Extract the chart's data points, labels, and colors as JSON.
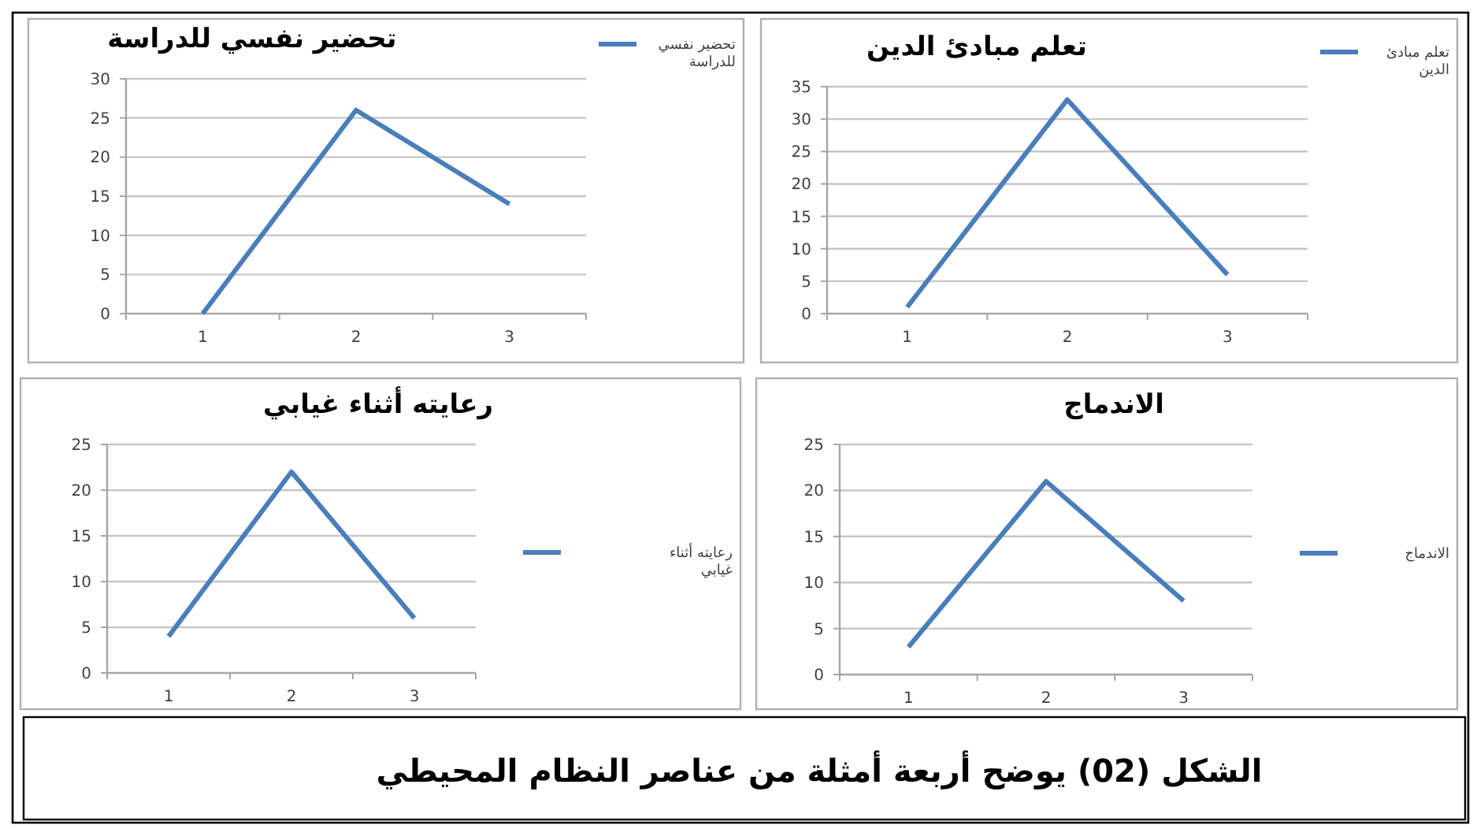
{
  "chart_data": [
    {
      "type": "line",
      "title": "تحضير نفسي للدراسة",
      "categories": [
        "1",
        "2",
        "3"
      ],
      "series": [
        {
          "name": "تحضير نفسي للدراسة",
          "color": "#4a7ebb",
          "values": [
            0,
            26,
            14
          ]
        }
      ],
      "ylim": [
        0,
        30
      ],
      "yticks": [
        0,
        5,
        10,
        15,
        20,
        25,
        30
      ],
      "grid": "y",
      "legend": "top right",
      "marker": "none",
      "line_style": "solid"
    },
    {
      "type": "line",
      "title": "تعلم مبادئ الدين",
      "categories": [
        "1",
        "2",
        "3"
      ],
      "series": [
        {
          "name": "تعلم مبادئ الدين",
          "color": "#4a7ebb",
          "values": [
            1,
            33,
            6
          ]
        }
      ],
      "ylim": [
        0,
        35
      ],
      "yticks": [
        0,
        5,
        10,
        15,
        20,
        25,
        30,
        35
      ],
      "grid": "y",
      "legend": "top right",
      "marker": "none",
      "line_style": "solid"
    },
    {
      "type": "line",
      "title": "رعايته أثناء غيابي",
      "categories": [
        "1",
        "2",
        "3"
      ],
      "series": [
        {
          "name": "رعايته أثناء غيابي",
          "color": "#4a7ebb",
          "values": [
            4,
            22,
            6
          ]
        }
      ],
      "ylim": [
        0,
        25
      ],
      "yticks": [
        0,
        5,
        10,
        15,
        20,
        25
      ],
      "grid": "y",
      "legend": "right",
      "marker": "none",
      "line_style": "solid"
    },
    {
      "type": "line",
      "title": "الاندماج",
      "categories": [
        "1",
        "2",
        "3"
      ],
      "series": [
        {
          "name": "الاندماج",
          "color": "#4a7ebb",
          "values": [
            3,
            21,
            8
          ]
        }
      ],
      "ylim": [
        0,
        25
      ],
      "yticks": [
        0,
        5,
        10,
        15,
        20,
        25
      ],
      "grid": "y",
      "legend": "right",
      "marker": "none",
      "line_style": "solid",
      "annotations": [
        "الشكل (02) يوضح أربعة أمثلة من عناصر النظام المحيطي"
      ]
    }
  ]
}
